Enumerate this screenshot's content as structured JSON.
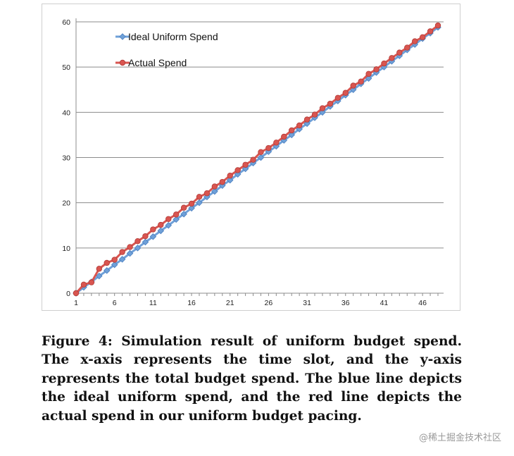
{
  "chart_data": {
    "type": "line",
    "title": "",
    "xlabel": "",
    "ylabel": "",
    "x": [
      1,
      2,
      3,
      4,
      5,
      6,
      7,
      8,
      9,
      10,
      11,
      12,
      13,
      14,
      15,
      16,
      17,
      18,
      19,
      20,
      21,
      22,
      23,
      24,
      25,
      26,
      27,
      28,
      29,
      30,
      31,
      32,
      33,
      34,
      35,
      36,
      37,
      38,
      39,
      40,
      41,
      42,
      43,
      44,
      45,
      46,
      47,
      48
    ],
    "xticks": [
      1,
      6,
      11,
      16,
      21,
      26,
      31,
      36,
      41,
      46
    ],
    "ylim": [
      0,
      60
    ],
    "yticks": [
      0,
      10,
      20,
      30,
      40,
      50,
      60
    ],
    "grid": "horizontal",
    "legend_position": "top-left",
    "series": [
      {
        "name": "Ideal Uniform Spend",
        "color": "#6fa0d8",
        "marker": "diamond",
        "values": [
          0,
          1.3,
          2.5,
          3.8,
          5.0,
          6.3,
          7.5,
          8.8,
          10.0,
          11.3,
          12.5,
          13.8,
          15.0,
          16.3,
          17.5,
          18.8,
          20.0,
          21.3,
          22.5,
          23.8,
          25.0,
          26.3,
          27.5,
          28.8,
          30.0,
          31.3,
          32.5,
          33.8,
          35.0,
          36.3,
          37.5,
          38.8,
          40.0,
          41.3,
          42.5,
          43.8,
          45.0,
          46.3,
          47.5,
          48.8,
          50.0,
          51.3,
          52.5,
          53.8,
          55.0,
          56.3,
          57.5,
          58.8
        ]
      },
      {
        "name": "Actual Spend",
        "color": "#d95550",
        "marker": "circle",
        "values": [
          0,
          1.9,
          2.4,
          5.4,
          6.7,
          7.4,
          9.1,
          10.2,
          11.5,
          12.6,
          14.1,
          15.1,
          16.4,
          17.4,
          18.9,
          19.8,
          21.3,
          22.1,
          23.6,
          24.6,
          26.0,
          27.2,
          28.4,
          29.5,
          31.2,
          32.1,
          33.3,
          34.6,
          36.0,
          37.1,
          38.4,
          39.5,
          40.9,
          41.9,
          43.2,
          44.3,
          45.9,
          46.8,
          48.5,
          49.5,
          50.8,
          52.0,
          53.2,
          54.3,
          55.7,
          56.6,
          57.9,
          59.2
        ]
      }
    ]
  },
  "caption": "Figure 4:  Simulation result of uniform budget spend. The x-axis represents the time slot, and the y-axis represents the total budget spend. The blue line depicts the ideal uniform spend, and the red line depicts the actual spend in our uniform budget pacing.",
  "watermark": "@稀土掘金技术社区"
}
